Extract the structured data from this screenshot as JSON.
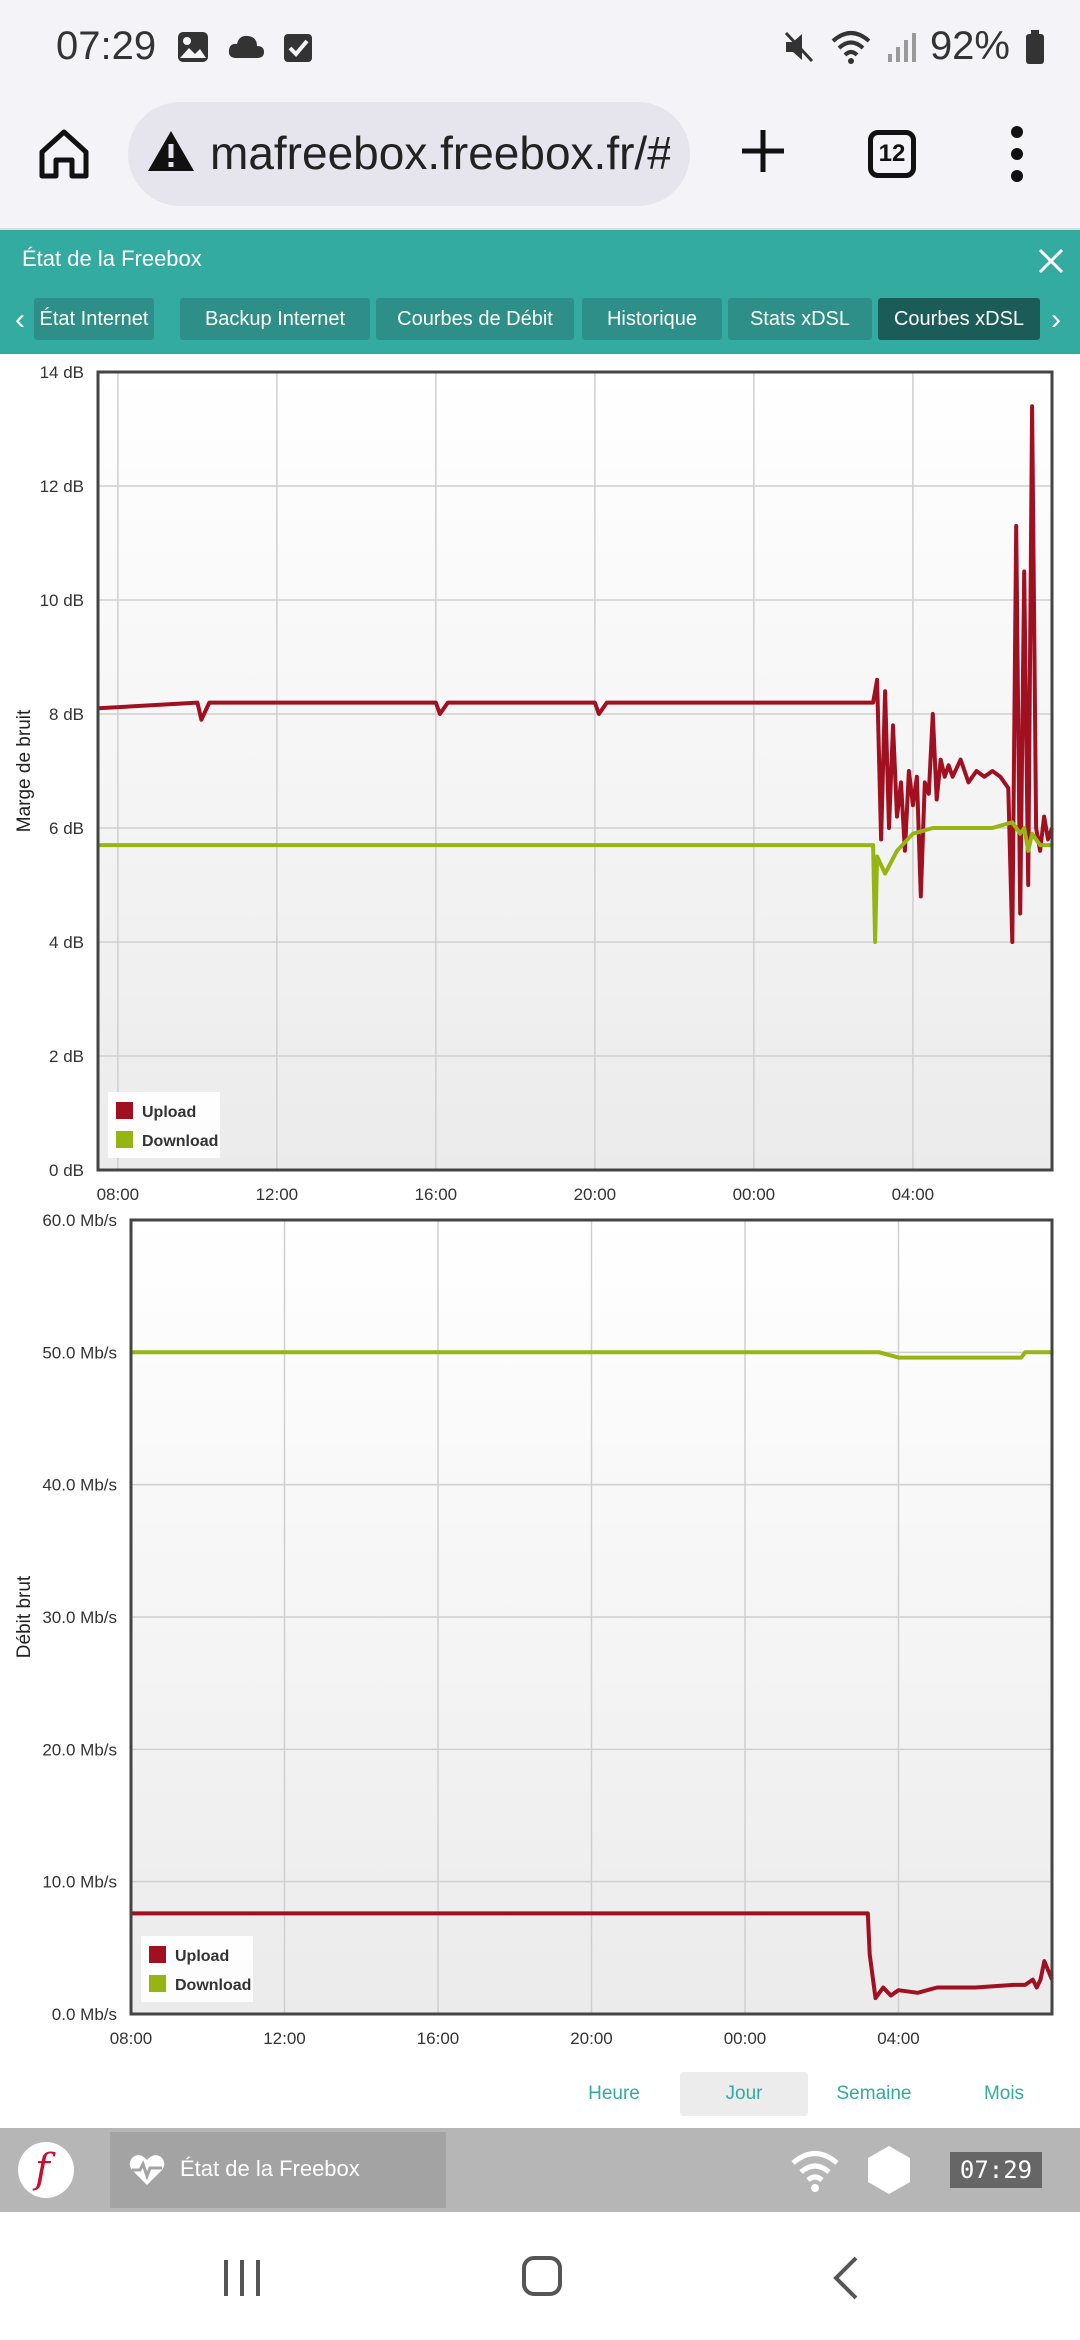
{
  "status": {
    "time": "07:29",
    "battery": "92%"
  },
  "browser": {
    "url": "mafreebox.freebox.fr/#Fbx",
    "tab_count": "12"
  },
  "app": {
    "title": "État de la Freebox",
    "tabs": [
      {
        "label": "État Internet"
      },
      {
        "label": "Backup Internet"
      },
      {
        "label": "Courbes de Débit"
      },
      {
        "label": "Historique"
      },
      {
        "label": "Stats xDSL"
      },
      {
        "label": "Courbes xDSL"
      }
    ]
  },
  "colors": {
    "upload": "#a01020",
    "download": "#96b414",
    "accent": "#33aba0"
  },
  "chart_data": [
    {
      "type": "line",
      "ylabel": "Marge de bruit",
      "ylim": [
        0,
        14
      ],
      "yticks": [
        "0 dB",
        "2 dB",
        "4 dB",
        "6 dB",
        "8 dB",
        "10 dB",
        "12 dB",
        "14 dB"
      ],
      "xticks": [
        "08:00",
        "12:00",
        "16:00",
        "20:00",
        "00:00",
        "04:00"
      ],
      "x_hours": [
        0,
        4,
        8,
        12,
        16,
        20
      ],
      "xlim": [
        -0.5,
        23.5
      ],
      "legend": "bottom-left",
      "grid": true,
      "series": [
        {
          "name": "Upload",
          "x": [
            -0.5,
            2,
            2.1,
            2.3,
            8,
            8.1,
            8.3,
            12,
            12.1,
            12.3,
            16,
            17,
            18,
            19,
            19.1,
            19.2,
            19.3,
            19.4,
            19.5,
            19.6,
            19.7,
            19.8,
            19.9,
            20,
            20.1,
            20.2,
            20.3,
            20.4,
            20.5,
            20.6,
            20.7,
            20.8,
            20.9,
            21,
            21.2,
            21.4,
            21.6,
            21.8,
            22,
            22.2,
            22.4,
            22.5,
            22.6,
            22.7,
            22.8,
            22.9,
            23,
            23.1,
            23.2,
            23.3,
            23.4,
            23.5
          ],
          "y": [
            8.1,
            8.2,
            7.9,
            8.2,
            8.2,
            8.0,
            8.2,
            8.2,
            8.0,
            8.2,
            8.2,
            8.2,
            8.2,
            8.2,
            8.6,
            5.8,
            8.4,
            6.0,
            7.8,
            6.2,
            6.8,
            5.6,
            7.0,
            6.4,
            6.9,
            4.8,
            6.8,
            6.6,
            8.0,
            6.5,
            7.2,
            6.9,
            7.1,
            6.9,
            7.2,
            6.8,
            7.0,
            6.9,
            7.0,
            6.9,
            6.7,
            4.0,
            11.3,
            4.5,
            10.5,
            5.0,
            13.4,
            6.0,
            5.6,
            6.2,
            5.8,
            6.0
          ]
        },
        {
          "name": "Download",
          "x": [
            -0.5,
            4.2,
            8,
            12,
            16,
            18,
            19,
            19.05,
            19.1,
            19.3,
            19.6,
            20,
            20.5,
            21,
            22,
            22.5,
            22.7,
            22.8,
            22.9,
            23,
            23.2,
            23.5
          ],
          "y": [
            5.7,
            5.7,
            5.7,
            5.7,
            5.7,
            5.7,
            5.7,
            4.0,
            5.5,
            5.2,
            5.6,
            5.9,
            6.0,
            6.0,
            6.0,
            6.1,
            5.9,
            6.0,
            5.6,
            5.9,
            5.7,
            5.7
          ]
        }
      ]
    },
    {
      "type": "line",
      "ylabel": "Débit brut",
      "ylim": [
        0,
        60
      ],
      "yticks": [
        "0.0 Mb/s",
        "10.0 Mb/s",
        "20.0 Mb/s",
        "30.0 Mb/s",
        "40.0 Mb/s",
        "50.0 Mb/s",
        "60.0 Mb/s"
      ],
      "xticks": [
        "08:00",
        "12:00",
        "16:00",
        "20:00",
        "00:00",
        "04:00"
      ],
      "x_hours": [
        0,
        4,
        8,
        12,
        16,
        20
      ],
      "xlim": [
        0,
        24
      ],
      "legend": "bottom-left",
      "grid": true,
      "series": [
        {
          "name": "Upload",
          "x": [
            0,
            4,
            8,
            12,
            16,
            19,
            19.2,
            19.25,
            19.4,
            19.6,
            19.8,
            20,
            20.5,
            21,
            22,
            23,
            23.3,
            23.5,
            23.6,
            23.7,
            23.8,
            24
          ],
          "y": [
            7.6,
            7.6,
            7.6,
            7.6,
            7.6,
            7.6,
            7.6,
            4.5,
            1.2,
            2.0,
            1.4,
            1.8,
            1.6,
            2.0,
            2.0,
            2.2,
            2.2,
            2.6,
            2.0,
            2.6,
            4.0,
            2.6
          ]
        },
        {
          "name": "Download",
          "x": [
            0,
            4,
            8,
            12,
            16,
            19,
            19.5,
            20,
            22,
            23.2,
            23.3,
            24
          ],
          "y": [
            50,
            50,
            50,
            50,
            50,
            50,
            50,
            49.6,
            49.6,
            49.6,
            50,
            50
          ]
        }
      ]
    }
  ],
  "periods": [
    {
      "label": "Heure"
    },
    {
      "label": "Jour"
    },
    {
      "label": "Semaine"
    },
    {
      "label": "Mois"
    }
  ],
  "taskbar": {
    "task_label": "État de la Freebox",
    "clock": "07:29"
  }
}
